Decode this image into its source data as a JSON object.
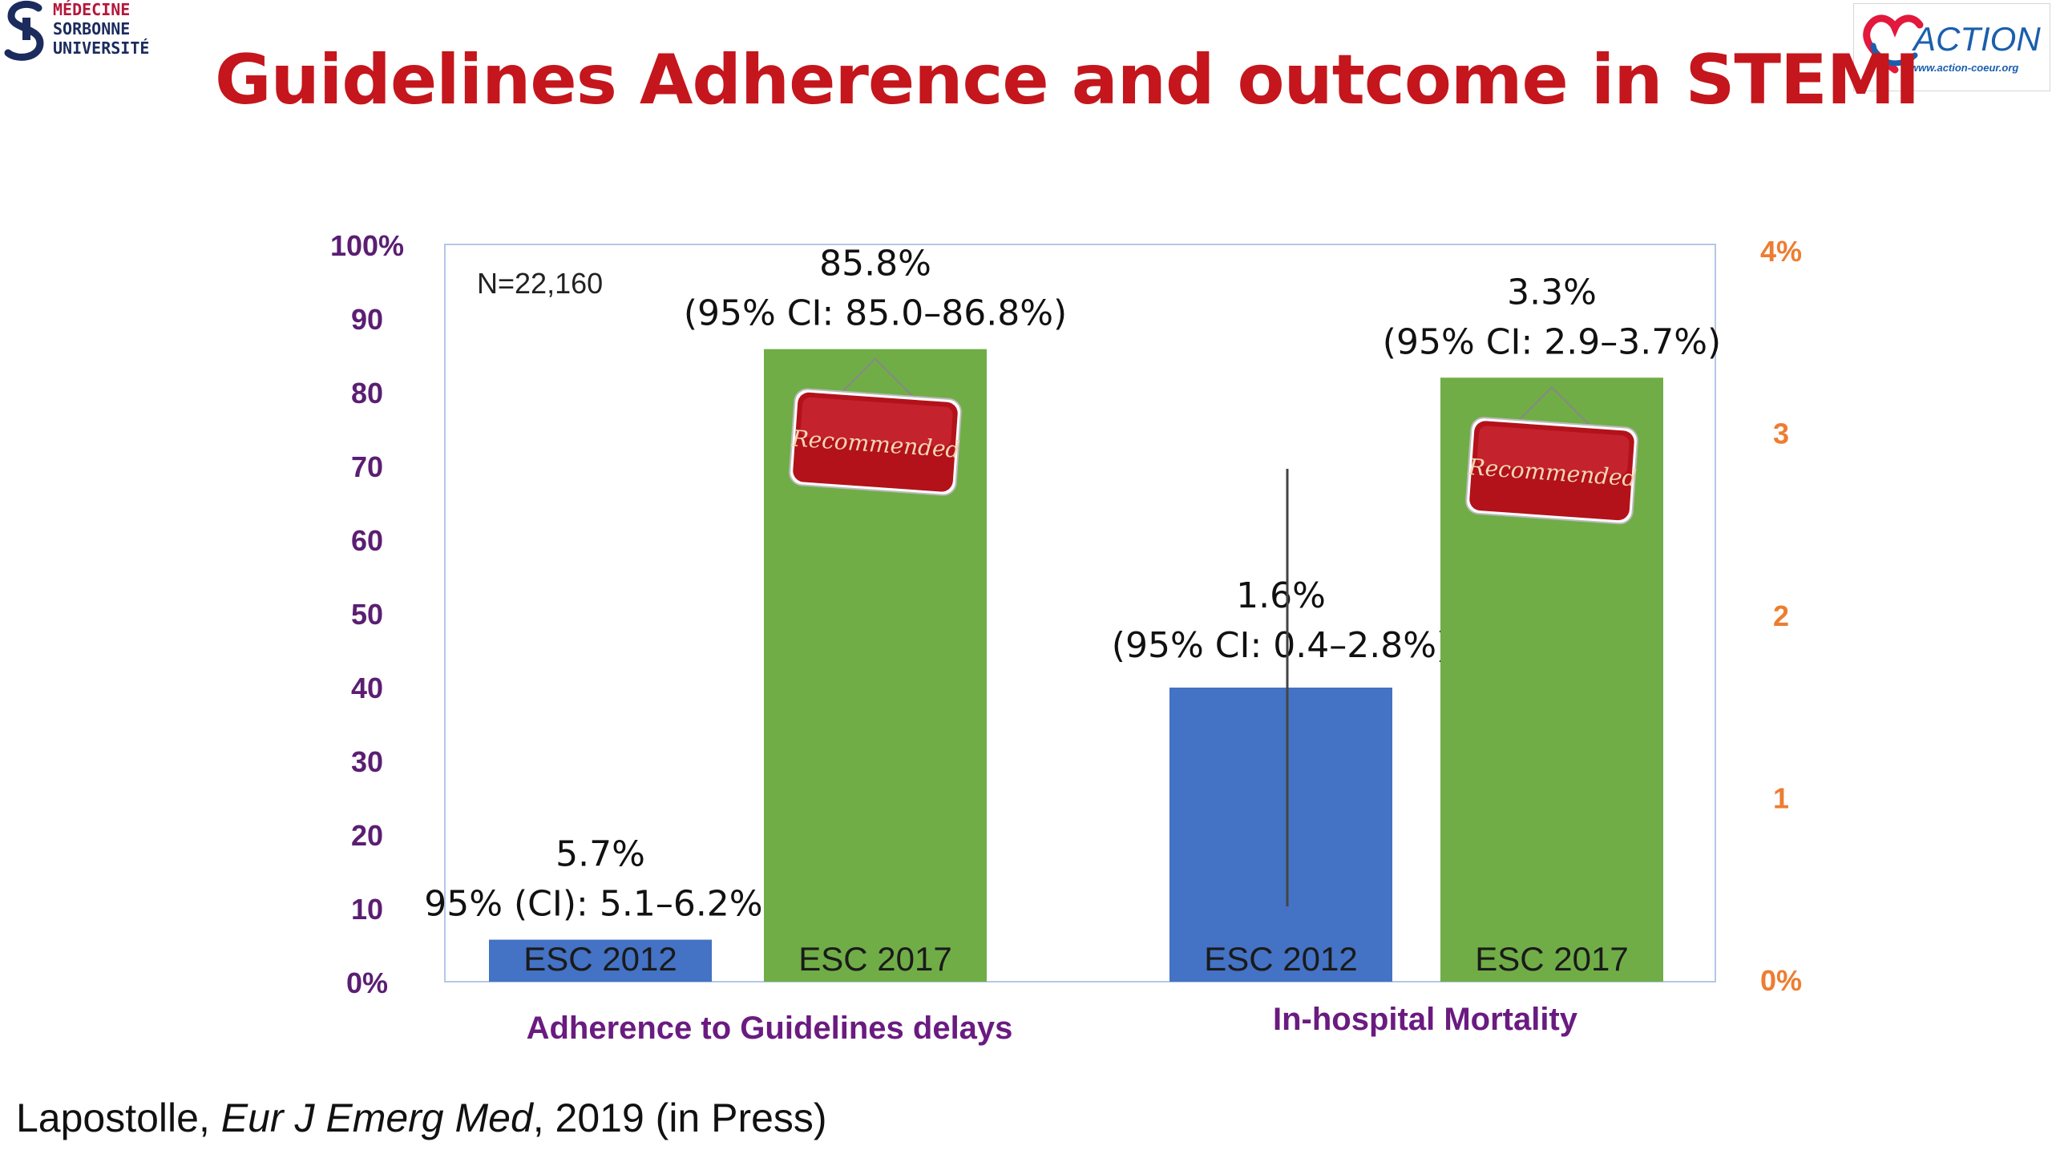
{
  "header": {
    "title": "Guidelines Adherence and outcome in STEMI",
    "logo_left_lines": [
      "MÉDECINE",
      "SORBONNE",
      "UNIVERSITÉ"
    ],
    "logo_right_text": "ACTION",
    "logo_right_url": "www.action-coeur.org"
  },
  "citation": {
    "author": "Lapostolle, ",
    "journal": "Eur J Emerg Med",
    "rest": ", 2019 (in Press)"
  },
  "chart_data": {
    "type": "bar",
    "note": "N=22,160",
    "groups": [
      {
        "label": "Adherence to Guidelines delays",
        "axis": "left",
        "bars": [
          {
            "label": "ESC 2012",
            "value": 5.7,
            "value_text": "5.7%",
            "ci_text": "95% (CI): 5.1–6.2%]",
            "color": "#4472c4",
            "badge": ""
          },
          {
            "label": "ESC 2017",
            "value": 85.8,
            "value_text": "85.8%",
            "ci_text": "(95% CI: 85.0–86.8%)",
            "color": "#70ad47",
            "badge": "Recommended"
          }
        ]
      },
      {
        "label": "In-hospital Mortality",
        "axis": "right",
        "bars": [
          {
            "label": "ESC 2012",
            "value": 1.6,
            "value_text": "1.6%",
            "ci_text": "(95% CI: 0.4–2.8%)",
            "color": "#4472c4",
            "badge": "",
            "error": [
              0.4,
              2.8
            ]
          },
          {
            "label": "ESC 2017",
            "value": 3.3,
            "value_text": "3.3%",
            "ci_text": "(95% CI: 2.9–3.7%)",
            "color": "#70ad47",
            "badge": "Recommended"
          }
        ]
      }
    ],
    "left_axis": {
      "ticks": [
        "0%",
        "10",
        "20",
        "30",
        "40",
        "50",
        "60",
        "70",
        "80",
        "90",
        "100%"
      ],
      "min": 0,
      "max": 100,
      "color": "#5b1e72"
    },
    "right_axis": {
      "ticks": [
        "0%",
        "1",
        "2",
        "3",
        "4%"
      ],
      "min": 0,
      "max": 4,
      "color": "#ed7d31"
    }
  }
}
